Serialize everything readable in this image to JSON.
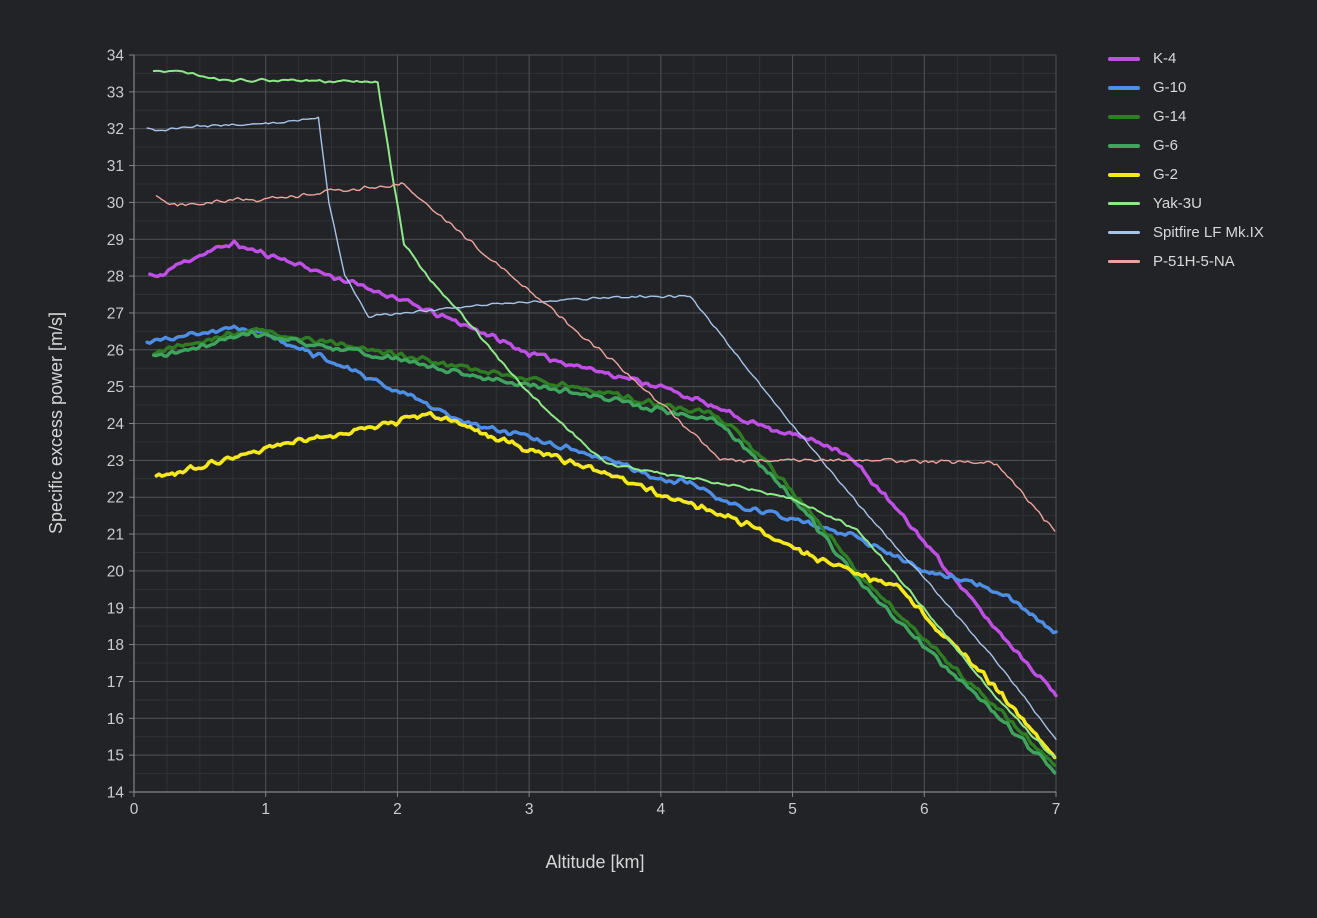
{
  "chart_data": {
    "type": "line",
    "title": "",
    "xlabel": "Altitude [km]",
    "ylabel": "Specific excess power [m/s]",
    "xlim": [
      0,
      7
    ],
    "ylim": [
      14,
      34
    ],
    "x_ticks": [
      0,
      1,
      2,
      3,
      4,
      5,
      6,
      7
    ],
    "y_ticks": [
      14,
      15,
      16,
      17,
      18,
      19,
      20,
      21,
      22,
      23,
      24,
      25,
      26,
      27,
      28,
      29,
      30,
      31,
      32,
      33,
      34
    ],
    "x_minor_step": 0.25,
    "y_minor_step": 0.5,
    "grid": true,
    "legend_position": "right-top",
    "colors": {
      "background": "#222326",
      "grid_major": "#525255",
      "grid_minor": "#323235",
      "axis_line": "#85858a",
      "tick_text": "#cccccc",
      "title_text": "#d6d6d6"
    },
    "series": [
      {
        "name": "K-4",
        "color": "#c04fe6",
        "width": 3.4,
        "noise": 0.045,
        "points": [
          [
            0.12,
            28.05
          ],
          [
            0.18,
            27.95
          ],
          [
            0.3,
            28.25
          ],
          [
            0.45,
            28.5
          ],
          [
            0.75,
            28.9
          ],
          [
            0.85,
            28.75
          ],
          [
            1.1,
            28.5
          ],
          [
            1.5,
            28.0
          ],
          [
            2.0,
            27.4
          ],
          [
            2.2,
            27.1
          ],
          [
            2.6,
            26.55
          ],
          [
            3.0,
            25.9
          ],
          [
            3.5,
            25.45
          ],
          [
            4.0,
            25.0
          ],
          [
            4.3,
            24.6
          ],
          [
            4.6,
            24.15
          ],
          [
            4.85,
            23.85
          ],
          [
            5.0,
            23.7
          ],
          [
            5.2,
            23.5
          ],
          [
            5.35,
            23.3
          ],
          [
            5.5,
            22.85
          ],
          [
            6.0,
            20.8
          ],
          [
            6.5,
            18.6
          ],
          [
            7.0,
            16.65
          ]
        ]
      },
      {
        "name": "G-10",
        "color": "#4d8fe6",
        "width": 3.4,
        "noise": 0.045,
        "points": [
          [
            0.1,
            26.2
          ],
          [
            0.3,
            26.35
          ],
          [
            0.55,
            26.45
          ],
          [
            0.8,
            26.6
          ],
          [
            0.95,
            26.5
          ],
          [
            1.2,
            26.1
          ],
          [
            1.5,
            25.7
          ],
          [
            2.0,
            24.9
          ],
          [
            2.5,
            24.05
          ],
          [
            3.0,
            23.6
          ],
          [
            3.5,
            23.15
          ],
          [
            4.0,
            22.5
          ],
          [
            4.2,
            22.4
          ],
          [
            4.5,
            21.85
          ],
          [
            5.0,
            21.4
          ],
          [
            5.5,
            20.9
          ],
          [
            6.0,
            20.0
          ],
          [
            6.3,
            19.75
          ],
          [
            6.6,
            19.4
          ],
          [
            7.0,
            18.3
          ]
        ]
      },
      {
        "name": "G-14",
        "color": "#2e7d22",
        "width": 3.4,
        "noise": 0.045,
        "points": [
          [
            0.15,
            25.95
          ],
          [
            0.4,
            26.15
          ],
          [
            0.9,
            26.55
          ],
          [
            1.2,
            26.35
          ],
          [
            1.5,
            26.2
          ],
          [
            2.0,
            25.9
          ],
          [
            2.5,
            25.5
          ],
          [
            3.0,
            25.2
          ],
          [
            3.5,
            24.9
          ],
          [
            4.0,
            24.5
          ],
          [
            4.4,
            24.25
          ],
          [
            4.6,
            23.7
          ],
          [
            5.0,
            22.15
          ],
          [
            5.5,
            19.95
          ],
          [
            6.0,
            18.15
          ],
          [
            6.5,
            16.45
          ],
          [
            7.0,
            14.7
          ]
        ]
      },
      {
        "name": "G-6",
        "color": "#3fa55e",
        "width": 3.4,
        "noise": 0.045,
        "points": [
          [
            0.15,
            25.8
          ],
          [
            0.4,
            26.0
          ],
          [
            0.9,
            26.45
          ],
          [
            1.2,
            26.25
          ],
          [
            1.5,
            26.05
          ],
          [
            2.0,
            25.75
          ],
          [
            2.5,
            25.35
          ],
          [
            3.0,
            25.05
          ],
          [
            3.5,
            24.75
          ],
          [
            4.0,
            24.35
          ],
          [
            4.4,
            24.1
          ],
          [
            4.6,
            23.5
          ],
          [
            5.0,
            22.0
          ],
          [
            5.5,
            19.75
          ],
          [
            6.0,
            17.95
          ],
          [
            6.5,
            16.25
          ],
          [
            7.0,
            14.55
          ]
        ]
      },
      {
        "name": "G-2",
        "color": "#f5e91e",
        "width": 3.6,
        "noise": 0.05,
        "points": [
          [
            0.17,
            22.55
          ],
          [
            0.35,
            22.7
          ],
          [
            0.75,
            23.1
          ],
          [
            1.0,
            23.3
          ],
          [
            1.5,
            23.7
          ],
          [
            2.0,
            24.05
          ],
          [
            2.25,
            24.25
          ],
          [
            2.4,
            24.05
          ],
          [
            2.75,
            23.6
          ],
          [
            3.0,
            23.3
          ],
          [
            3.5,
            22.75
          ],
          [
            4.0,
            22.1
          ],
          [
            4.5,
            21.5
          ],
          [
            4.75,
            21.1
          ],
          [
            5.0,
            20.6
          ],
          [
            5.3,
            20.15
          ],
          [
            5.55,
            19.85
          ],
          [
            5.8,
            19.6
          ],
          [
            6.1,
            18.4
          ],
          [
            6.5,
            17.0
          ],
          [
            7.0,
            14.9
          ]
        ]
      },
      {
        "name": "Yak-3U",
        "color": "#8ee88a",
        "width": 2.0,
        "noise": 0.025,
        "points": [
          [
            0.15,
            33.55
          ],
          [
            0.3,
            33.6
          ],
          [
            0.5,
            33.45
          ],
          [
            0.7,
            33.3
          ],
          [
            1.0,
            33.32
          ],
          [
            1.3,
            33.3
          ],
          [
            1.6,
            33.28
          ],
          [
            1.85,
            33.25
          ],
          [
            1.95,
            31.0
          ],
          [
            2.05,
            28.9
          ],
          [
            2.25,
            27.9
          ],
          [
            2.6,
            26.5
          ],
          [
            2.9,
            25.2
          ],
          [
            3.3,
            23.8
          ],
          [
            3.6,
            22.9
          ],
          [
            4.0,
            22.65
          ],
          [
            4.5,
            22.35
          ],
          [
            5.0,
            21.95
          ],
          [
            5.5,
            21.1
          ],
          [
            5.9,
            19.4
          ],
          [
            6.5,
            16.75
          ],
          [
            7.0,
            14.85
          ]
        ]
      },
      {
        "name": "Spitfire LF Mk.IX",
        "color": "#a6c3e8",
        "width": 1.4,
        "noise": 0.02,
        "points": [
          [
            0.1,
            32.0
          ],
          [
            0.2,
            31.95
          ],
          [
            0.4,
            32.05
          ],
          [
            0.7,
            32.1
          ],
          [
            1.0,
            32.15
          ],
          [
            1.2,
            32.2
          ],
          [
            1.4,
            32.3
          ],
          [
            1.48,
            30.0
          ],
          [
            1.6,
            28.0
          ],
          [
            1.78,
            26.9
          ],
          [
            1.9,
            26.95
          ],
          [
            2.2,
            27.05
          ],
          [
            2.6,
            27.2
          ],
          [
            3.0,
            27.3
          ],
          [
            3.6,
            27.42
          ],
          [
            4.0,
            27.45
          ],
          [
            4.22,
            27.45
          ],
          [
            4.5,
            26.2
          ],
          [
            5.0,
            23.95
          ],
          [
            5.5,
            21.8
          ],
          [
            6.0,
            19.8
          ],
          [
            6.5,
            17.75
          ],
          [
            7.0,
            15.45
          ]
        ]
      },
      {
        "name": "P-51H-5-NA",
        "color": "#eda49e",
        "width": 1.4,
        "noise": 0.035,
        "points": [
          [
            0.17,
            30.15
          ],
          [
            0.25,
            29.95
          ],
          [
            0.5,
            30.0
          ],
          [
            1.0,
            30.1
          ],
          [
            1.5,
            30.3
          ],
          [
            1.9,
            30.45
          ],
          [
            2.05,
            30.5
          ],
          [
            2.5,
            29.1
          ],
          [
            3.0,
            27.6
          ],
          [
            3.5,
            26.1
          ],
          [
            4.0,
            24.55
          ],
          [
            4.45,
            23.05
          ],
          [
            4.6,
            23.0
          ],
          [
            5.5,
            23.0
          ],
          [
            6.3,
            22.95
          ],
          [
            6.55,
            22.9
          ],
          [
            7.0,
            21.05
          ]
        ]
      }
    ]
  }
}
